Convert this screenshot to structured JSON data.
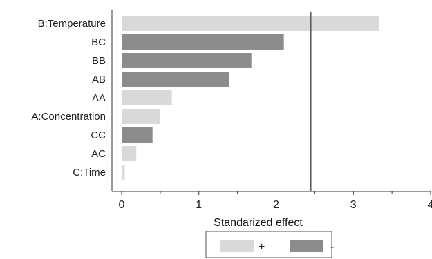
{
  "chart_data": {
    "type": "bar",
    "orientation": "horizontal",
    "categories": [
      "B:Temperature",
      "BC",
      "BB",
      "AB",
      "AA",
      "A:Concentration",
      "CC",
      "AC",
      "C:Time"
    ],
    "values": [
      3.33,
      2.1,
      1.68,
      1.39,
      0.65,
      0.5,
      0.4,
      0.19,
      0.04
    ],
    "signs": [
      "+",
      "-",
      "-",
      "-",
      "+",
      "+",
      "-",
      "+",
      "+"
    ],
    "xlabel": "Standarized effect",
    "ylabel": "",
    "xlim": [
      0,
      4
    ],
    "xticks": [
      0,
      1,
      2,
      3,
      4
    ],
    "reference_line": 2.45,
    "grid": false,
    "legend": {
      "position": "bottom-center",
      "items": [
        {
          "label": "+",
          "color": "#d9d9d9"
        },
        {
          "label": "-",
          "color": "#8c8c8c"
        }
      ]
    },
    "colors": {
      "positive": "#d9d9d9",
      "negative": "#8c8c8c",
      "reference_line": "#555555"
    }
  }
}
